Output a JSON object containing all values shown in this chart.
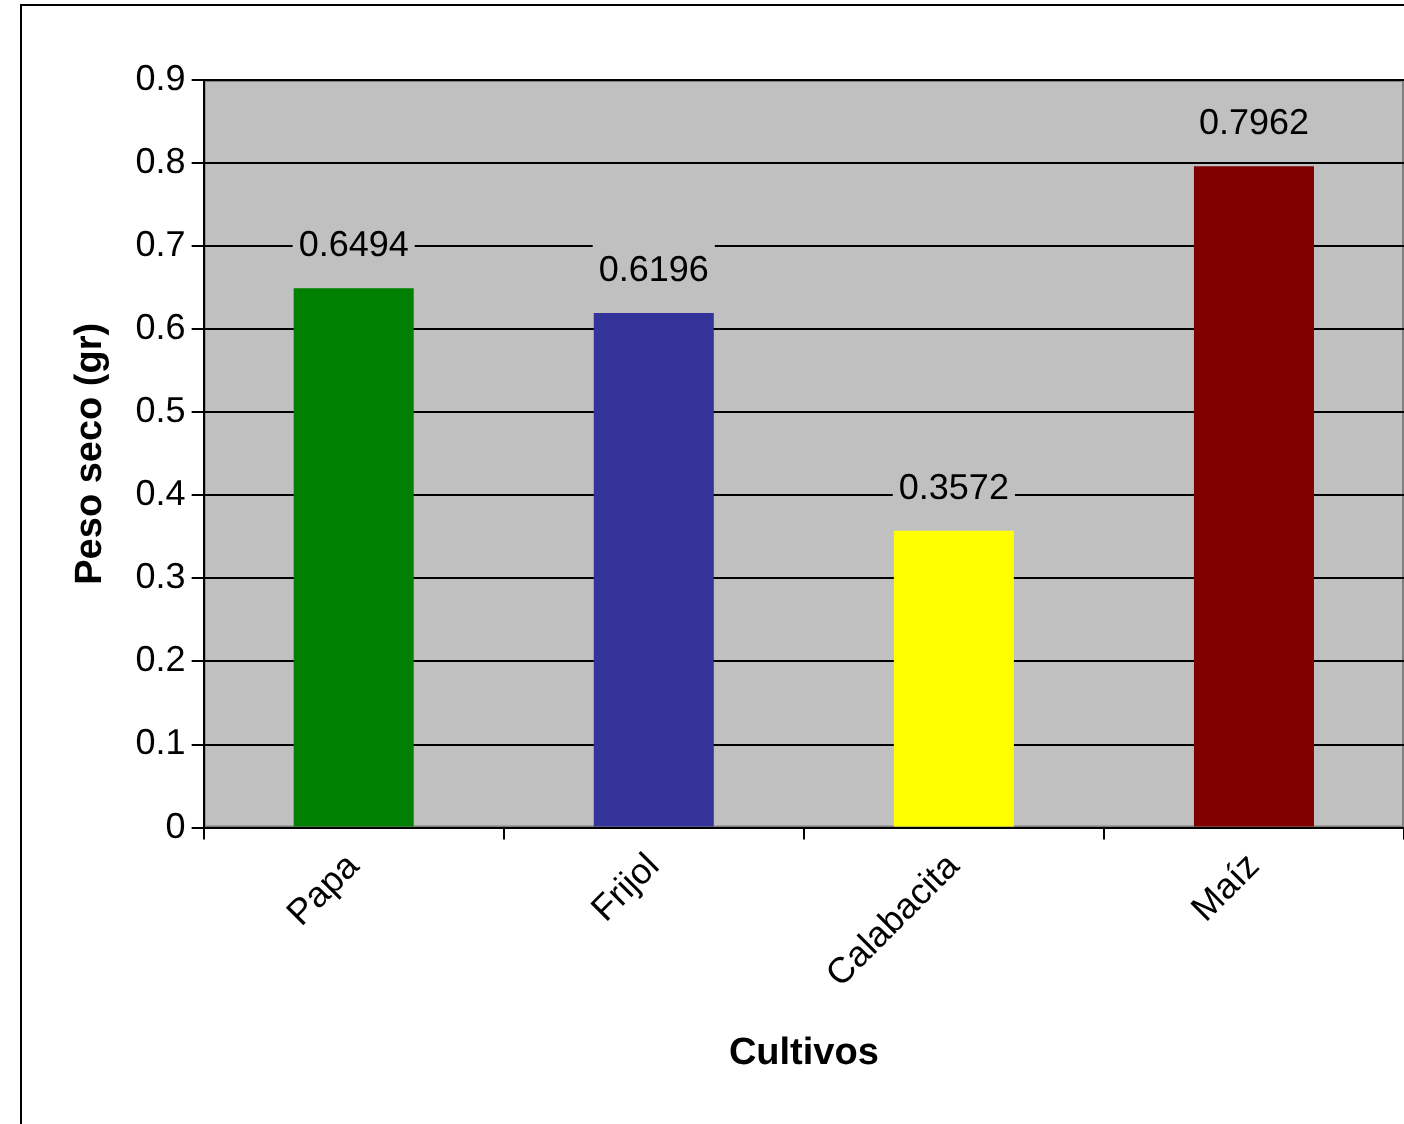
{
  "chart_data": {
    "type": "bar",
    "xlabel": "Cultivos",
    "ylabel": "Peso seco (gr)",
    "categories": [
      "Papa",
      "Frijol",
      "Calabacita",
      "Maíz"
    ],
    "values": [
      0.6494,
      0.6196,
      0.3572,
      0.7962
    ],
    "colors": [
      "#008000",
      "#333399",
      "#ffff00",
      "#800000"
    ],
    "ylim": [
      0,
      0.9
    ],
    "yticks": [
      0,
      0.1,
      0.2,
      0.3,
      0.4,
      0.5,
      0.6,
      0.7,
      0.8,
      0.9
    ],
    "grid": "y",
    "data_labels": true,
    "legend": false
  }
}
